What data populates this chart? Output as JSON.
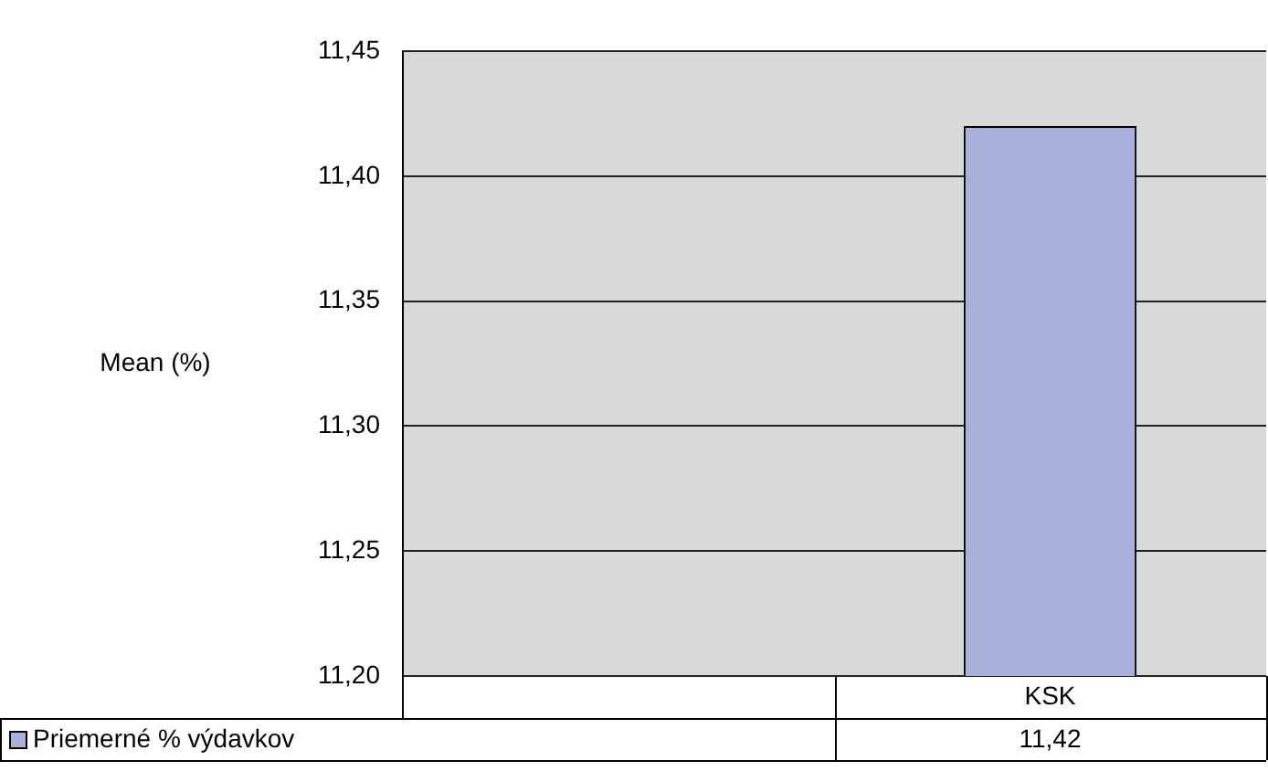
{
  "chart_data": {
    "type": "bar",
    "ylabel": "Mean (%)",
    "categories": [
      null,
      "KSK"
    ],
    "series": [
      {
        "name": "Priemerné % výdavkov",
        "color": "#aab0dc",
        "values": [
          null,
          11.42
        ],
        "value_labels": [
          null,
          "11,42"
        ]
      }
    ],
    "ylim": [
      11.2,
      11.45
    ],
    "yticks": [
      {
        "value": 11.2,
        "label": "11,20"
      },
      {
        "value": 11.25,
        "label": "11,25"
      },
      {
        "value": 11.3,
        "label": "11,30"
      },
      {
        "value": 11.35,
        "label": "11,35"
      },
      {
        "value": 11.4,
        "label": "11,40"
      },
      {
        "value": 11.45,
        "label": "11,45"
      }
    ],
    "grid": "y",
    "legend": "bottom"
  }
}
